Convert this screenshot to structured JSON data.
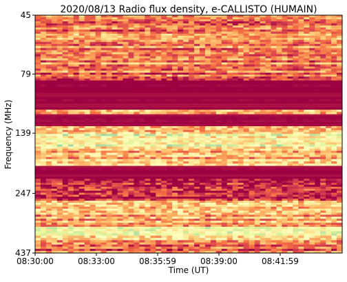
{
  "chart_data": {
    "type": "heatmap",
    "title": "2020/08/13  Radio flux density, e-CALLISTO (HUMAIN)",
    "xlabel": "Time (UT)",
    "ylabel": "Frequency (MHz)",
    "x_ticks": [
      "08:30:00",
      "08:33:00",
      "08:35:59",
      "08:39:00",
      "08:41:59"
    ],
    "y_ticks": [
      "45",
      "79",
      "139",
      "247",
      "437"
    ],
    "y_scale": "log",
    "y_range": [
      45,
      437
    ],
    "y_direction": "top-to-bottom increasing",
    "colormap": [
      "#9e0142",
      "#d53e4f",
      "#f46d43",
      "#fdae61",
      "#fee08b",
      "#ffffbf",
      "#e6f598",
      "#abdda4",
      "#66c2a5"
    ],
    "frequency_bands": [
      {
        "f_start": 45,
        "f_end": 78,
        "level": 0.3,
        "note": "noisy speckled band"
      },
      {
        "f_start": 78,
        "f_end": 84,
        "level": 0.22,
        "note": "mixed"
      },
      {
        "f_start": 84,
        "f_end": 111,
        "level": 0.0,
        "note": "low flux (saturated dark)"
      },
      {
        "f_start": 111,
        "f_end": 116,
        "level": 0.32,
        "note": "thin bright lines"
      },
      {
        "f_start": 116,
        "f_end": 130,
        "level": 0.0,
        "note": "low flux"
      },
      {
        "f_start": 130,
        "f_end": 140,
        "level": 0.45,
        "note": "bright stripes"
      },
      {
        "f_start": 140,
        "f_end": 158,
        "level": 0.62,
        "note": "strong interference band (green-yellow)"
      },
      {
        "f_start": 158,
        "f_end": 178,
        "level": 0.42,
        "note": "stripes"
      },
      {
        "f_start": 178,
        "f_end": 190,
        "level": 0.55,
        "note": "bright line"
      },
      {
        "f_start": 190,
        "f_end": 215,
        "level": 0.0,
        "note": "low flux"
      },
      {
        "f_start": 215,
        "f_end": 265,
        "level": 0.08,
        "note": "low flux"
      },
      {
        "f_start": 265,
        "f_end": 340,
        "level": 0.38,
        "note": "bursty emission"
      },
      {
        "f_start": 340,
        "f_end": 370,
        "level": 0.6,
        "note": "bright band"
      },
      {
        "f_start": 370,
        "f_end": 395,
        "level": 0.4,
        "note": "mixed"
      },
      {
        "f_start": 395,
        "f_end": 437,
        "level": 0.25,
        "note": "noisy"
      }
    ]
  }
}
